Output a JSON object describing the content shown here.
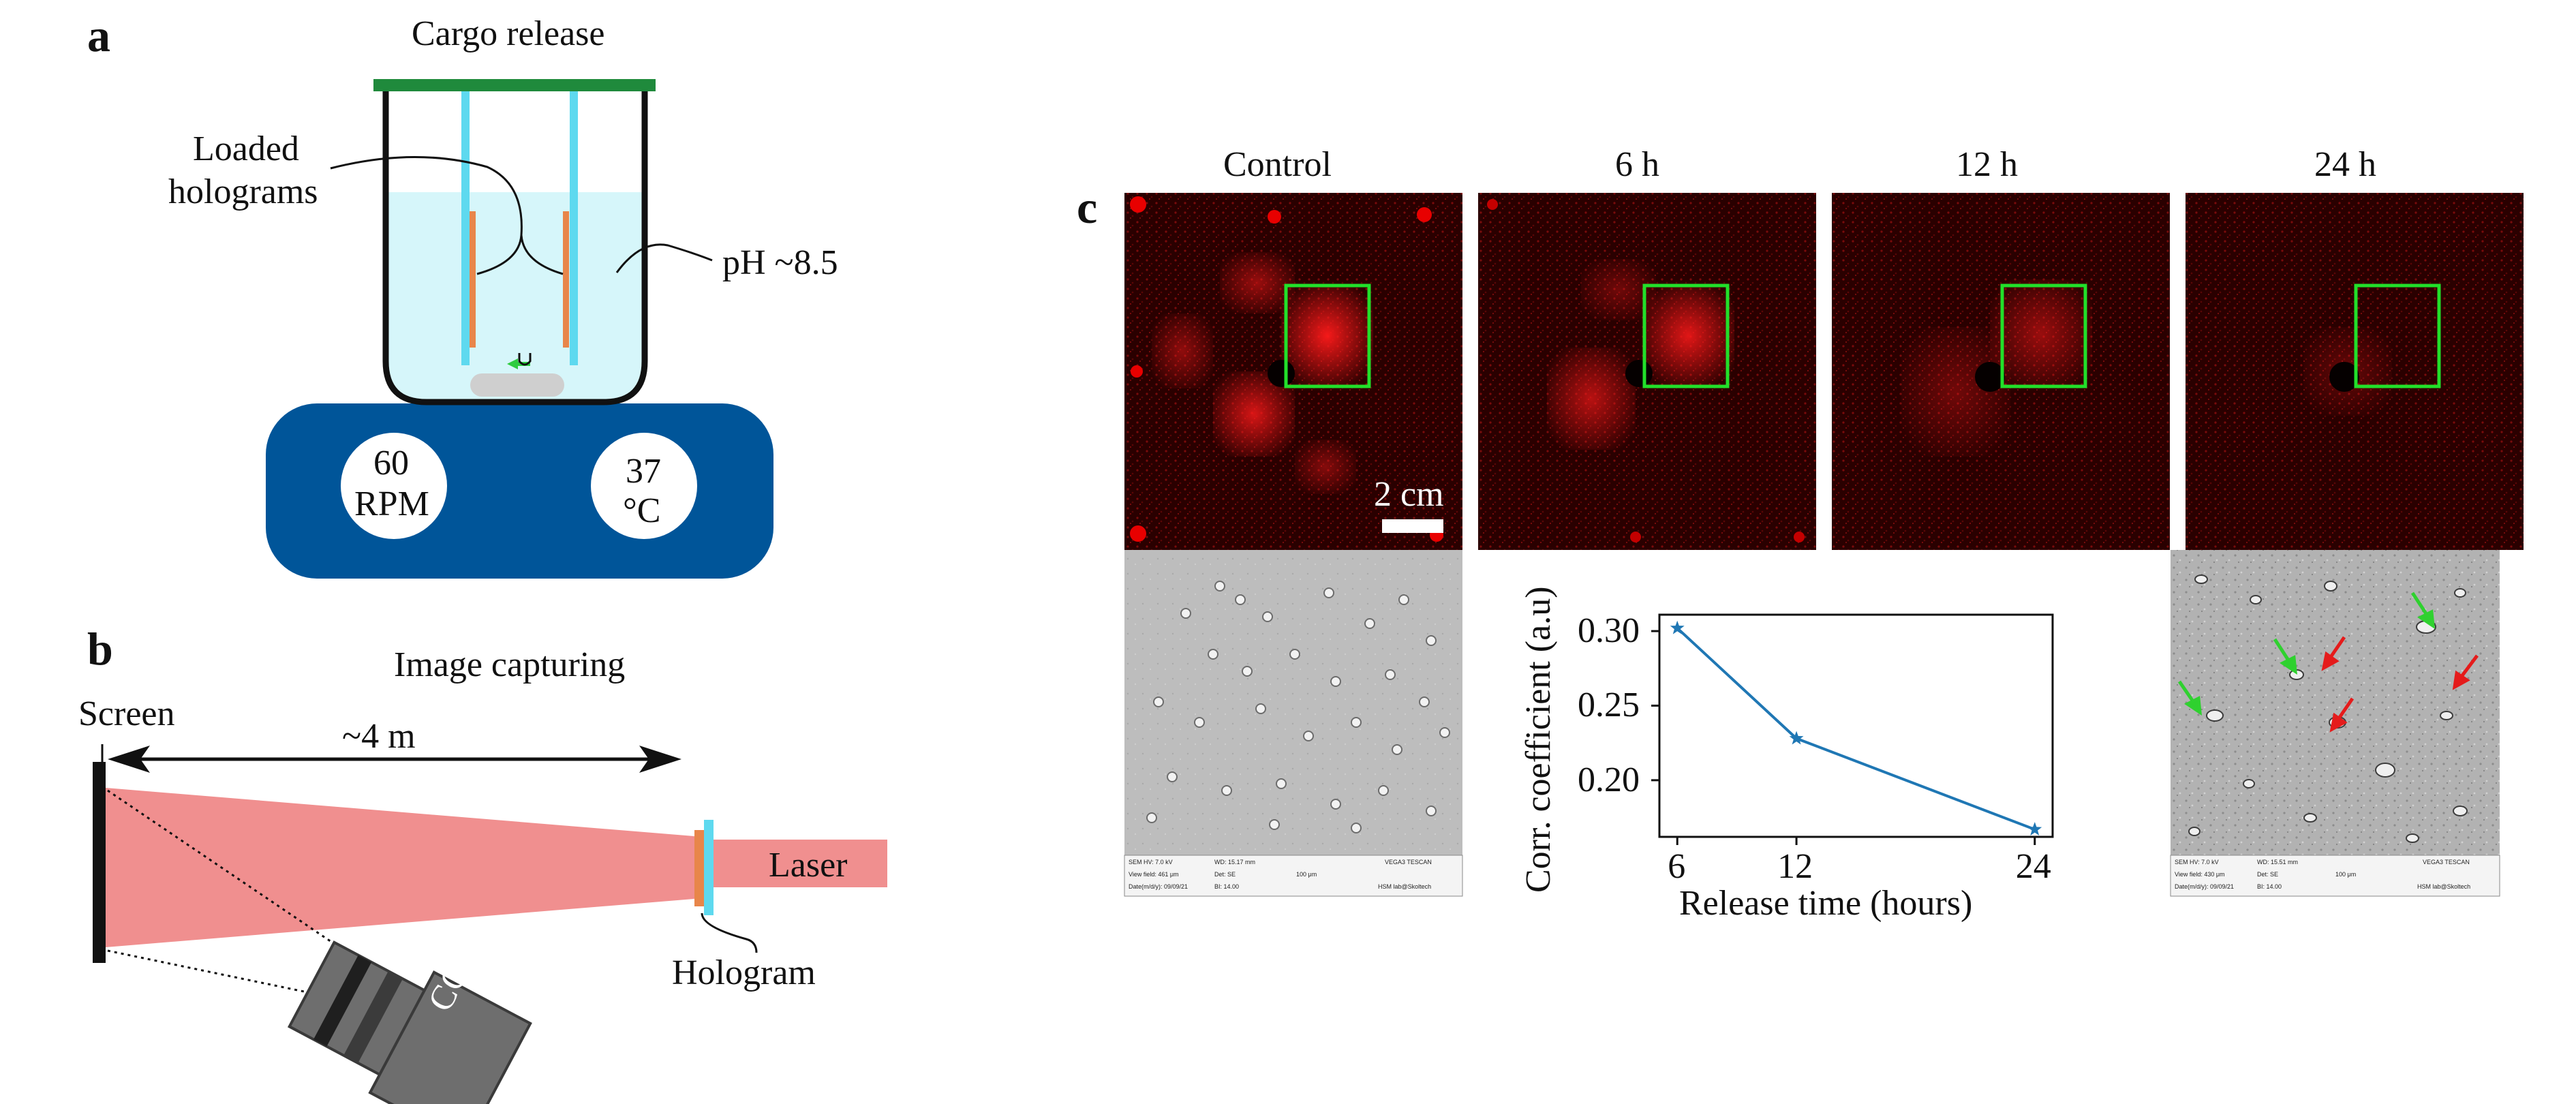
{
  "panels": {
    "a": {
      "letter": "a",
      "title": "Cargo release",
      "loaded_label_line1": "Loaded",
      "loaded_label_line2": "holograms",
      "ph_label": "pH ~8.5",
      "stirrer_speed_value": "60",
      "stirrer_speed_unit": "RPM",
      "temperature_value": "37",
      "temperature_unit": "°C",
      "colors": {
        "lid": "#1f8a3c",
        "liquid": "#d6f6fa",
        "plate": "#005599",
        "rod": "#5ed9ef",
        "hologram_strip": "#e8864a"
      }
    },
    "b": {
      "letter": "b",
      "title": "Image capturing",
      "screen_label": "Screen",
      "distance_label": "~4 m",
      "laser_label": "Laser",
      "hologram_label": "Hologram",
      "camera_label": "CCD",
      "colors": {
        "beam": "#f08f8f",
        "screen": "#111111",
        "camera": "#6e6e6e"
      }
    },
    "c": {
      "letter": "c",
      "columns": [
        "Control",
        "6 h",
        "12 h",
        "24 h"
      ],
      "scale_bar_label": "2 cm",
      "roi_color": "#22e02a",
      "sem_meta": {
        "left": {
          "hv": "SEM HV: 7.0 kV",
          "wd": "WD: 15.17 mm",
          "vf": "View field: 461 μm",
          "det": "Det: SE",
          "scale": "100 μm",
          "date": "Date(m/d/y): 09/09/21",
          "bi": "BI: 14.00",
          "brand": "VEGA3 TESCAN",
          "lab": "HSM lab@Skoltech"
        },
        "right": {
          "hv": "SEM HV: 7.0 kV",
          "wd": "WD: 15.51 mm",
          "vf": "View field: 430 μm",
          "det": "Det: SE",
          "scale": "100 μm",
          "date": "Date(m/d/y): 09/09/21",
          "bi": "BI: 14.00",
          "brand": "VEGA3 TESCAN",
          "lab": "HSM lab@Skoltech"
        }
      }
    }
  },
  "chart_data": {
    "type": "line",
    "title": "",
    "xlabel": "Release time (hours)",
    "ylabel": "Corr. coefficient (a.u)",
    "x_ticks": [
      "6",
      "12",
      "24"
    ],
    "y_ticks": [
      "0.30",
      "0.25",
      "0.20"
    ],
    "xlim": [
      5.1,
      24.9
    ],
    "ylim": [
      0.162,
      0.311
    ],
    "marker": "star",
    "color": "#1f77b4",
    "grid": false,
    "series": [
      {
        "x": [
          6,
          12,
          24
        ],
        "y": [
          0.302,
          0.228,
          0.167
        ]
      }
    ]
  }
}
